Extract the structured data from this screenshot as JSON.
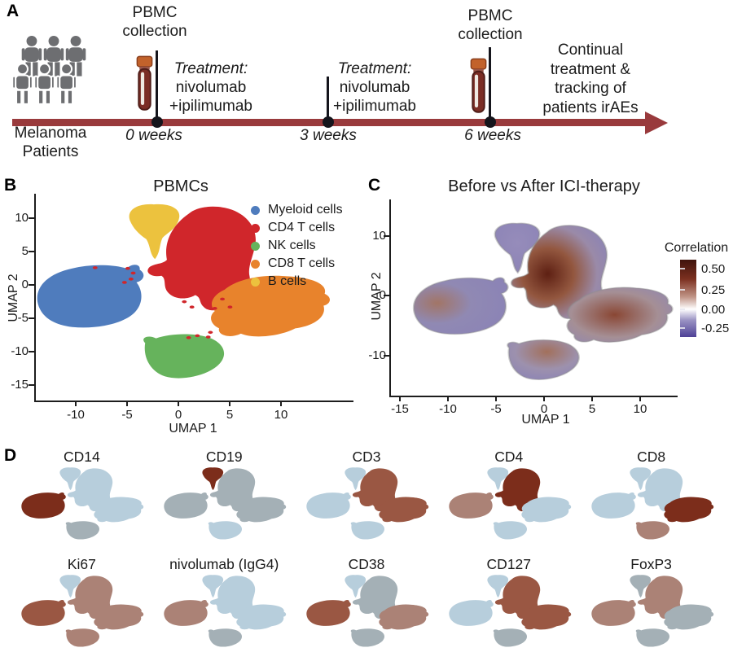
{
  "panels": {
    "a": "A",
    "b": "B",
    "c": "C",
    "d": "D"
  },
  "panel_a": {
    "patients_caption_line1": "Melanoma",
    "patients_caption_line2": "Patients",
    "pbmc_collection_line1": "PBMC",
    "pbmc_collection_line2": "collection",
    "treatment_label": "Treatment:",
    "treatment_drug1": "nivolumab",
    "treatment_drug2": "+ipilimumab",
    "timepoint_0": "0 weeks",
    "timepoint_3": "3 weeks",
    "timepoint_6": "6 weeks",
    "continual_line1": "Continual",
    "continual_line2": "treatment &",
    "continual_line3": "tracking of",
    "continual_line4": "patients irAEs",
    "timeline_color": "#993a3c",
    "people_icon_color": "#6d6e71"
  },
  "chart_data": [
    {
      "id": "pbmc-umap",
      "type": "scatter",
      "title": "PBMCs",
      "xlabel": "UMAP 1",
      "ylabel": "UMAP 2",
      "xticks": [
        -10,
        -5,
        0,
        5,
        10
      ],
      "yticks": [
        10,
        5,
        0,
        -5,
        -10,
        -15
      ],
      "xlim": [
        -14,
        13
      ],
      "ylim": [
        -16,
        13
      ],
      "legend_position": "inside-top-right",
      "clusters": [
        {
          "label": "Myeloid cells",
          "color": "#4f7cbd",
          "x_center": -9,
          "y_center": -2
        },
        {
          "label": "CD4 T cells",
          "color": "#d0262b",
          "x_center": 2,
          "y_center": 5
        },
        {
          "label": "NK cells",
          "color": "#66b35c",
          "x_center": 0,
          "y_center": -11
        },
        {
          "label": "CD8 T cells",
          "color": "#e8832c",
          "x_center": 7,
          "y_center": -3.5
        },
        {
          "label": "B cells",
          "color": "#ecc23e",
          "x_center": -3,
          "y_center": 9
        }
      ]
    },
    {
      "id": "ici-correlation-umap",
      "type": "scatter",
      "title": "Before vs After ICI-therapy",
      "xlabel": "UMAP 1",
      "ylabel": "UMAP 2",
      "xticks": [
        -15,
        -10,
        -5,
        0,
        5,
        10
      ],
      "yticks": [
        10,
        0,
        -10
      ],
      "colorbar": {
        "title": "Correlation",
        "ticks": [
          "0.50",
          "0.25",
          "0.00",
          "-0.25"
        ],
        "high_color": "#40130c",
        "mid_color": "#ffffff",
        "low_color": "#4e4196",
        "purple_body": "#8b83b6"
      }
    },
    {
      "id": "marker-feature-umaps",
      "type": "scatter-grid",
      "palette": {
        "low": "#b7cedc",
        "gray": "#a4b0b6",
        "mid": "#ab8276",
        "med": "#9a5743",
        "high": "#7c2d1b"
      },
      "plots": [
        {
          "name": "CD14",
          "blobs": {
            "myeloid": "high",
            "b": "low",
            "cd4": "low",
            "cd8": "low",
            "nk": "gray"
          }
        },
        {
          "name": "CD19",
          "blobs": {
            "myeloid": "gray",
            "b": "high",
            "cd4": "gray",
            "cd8": "gray",
            "nk": "low"
          }
        },
        {
          "name": "CD3",
          "blobs": {
            "myeloid": "low",
            "b": "low",
            "cd4": "med",
            "cd8": "med",
            "nk": "low"
          }
        },
        {
          "name": "CD4",
          "blobs": {
            "myeloid": "mid",
            "b": "low",
            "cd4": "high",
            "cd8": "low",
            "nk": "low"
          }
        },
        {
          "name": "CD8",
          "blobs": {
            "myeloid": "low",
            "b": "low",
            "cd4": "low",
            "cd8": "high",
            "nk": "mid"
          }
        },
        {
          "name": "Ki67",
          "blobs": {
            "myeloid": "med",
            "b": "low",
            "cd4": "mid",
            "cd8": "mid",
            "nk": "mid"
          }
        },
        {
          "name": "nivolumab (IgG4)",
          "blobs": {
            "myeloid": "mid",
            "b": "low",
            "cd4": "low",
            "cd8": "low",
            "nk": "gray"
          }
        },
        {
          "name": "CD38",
          "blobs": {
            "myeloid": "med",
            "b": "low",
            "cd4": "gray",
            "cd8": "mid",
            "nk": "gray"
          }
        },
        {
          "name": "CD127",
          "blobs": {
            "myeloid": "low",
            "b": "low",
            "cd4": "med",
            "cd8": "med",
            "nk": "gray"
          }
        },
        {
          "name": "FoxP3",
          "blobs": {
            "myeloid": "mid",
            "b": "gray",
            "cd4": "mid",
            "cd8": "gray",
            "nk": "gray"
          }
        }
      ]
    }
  ]
}
